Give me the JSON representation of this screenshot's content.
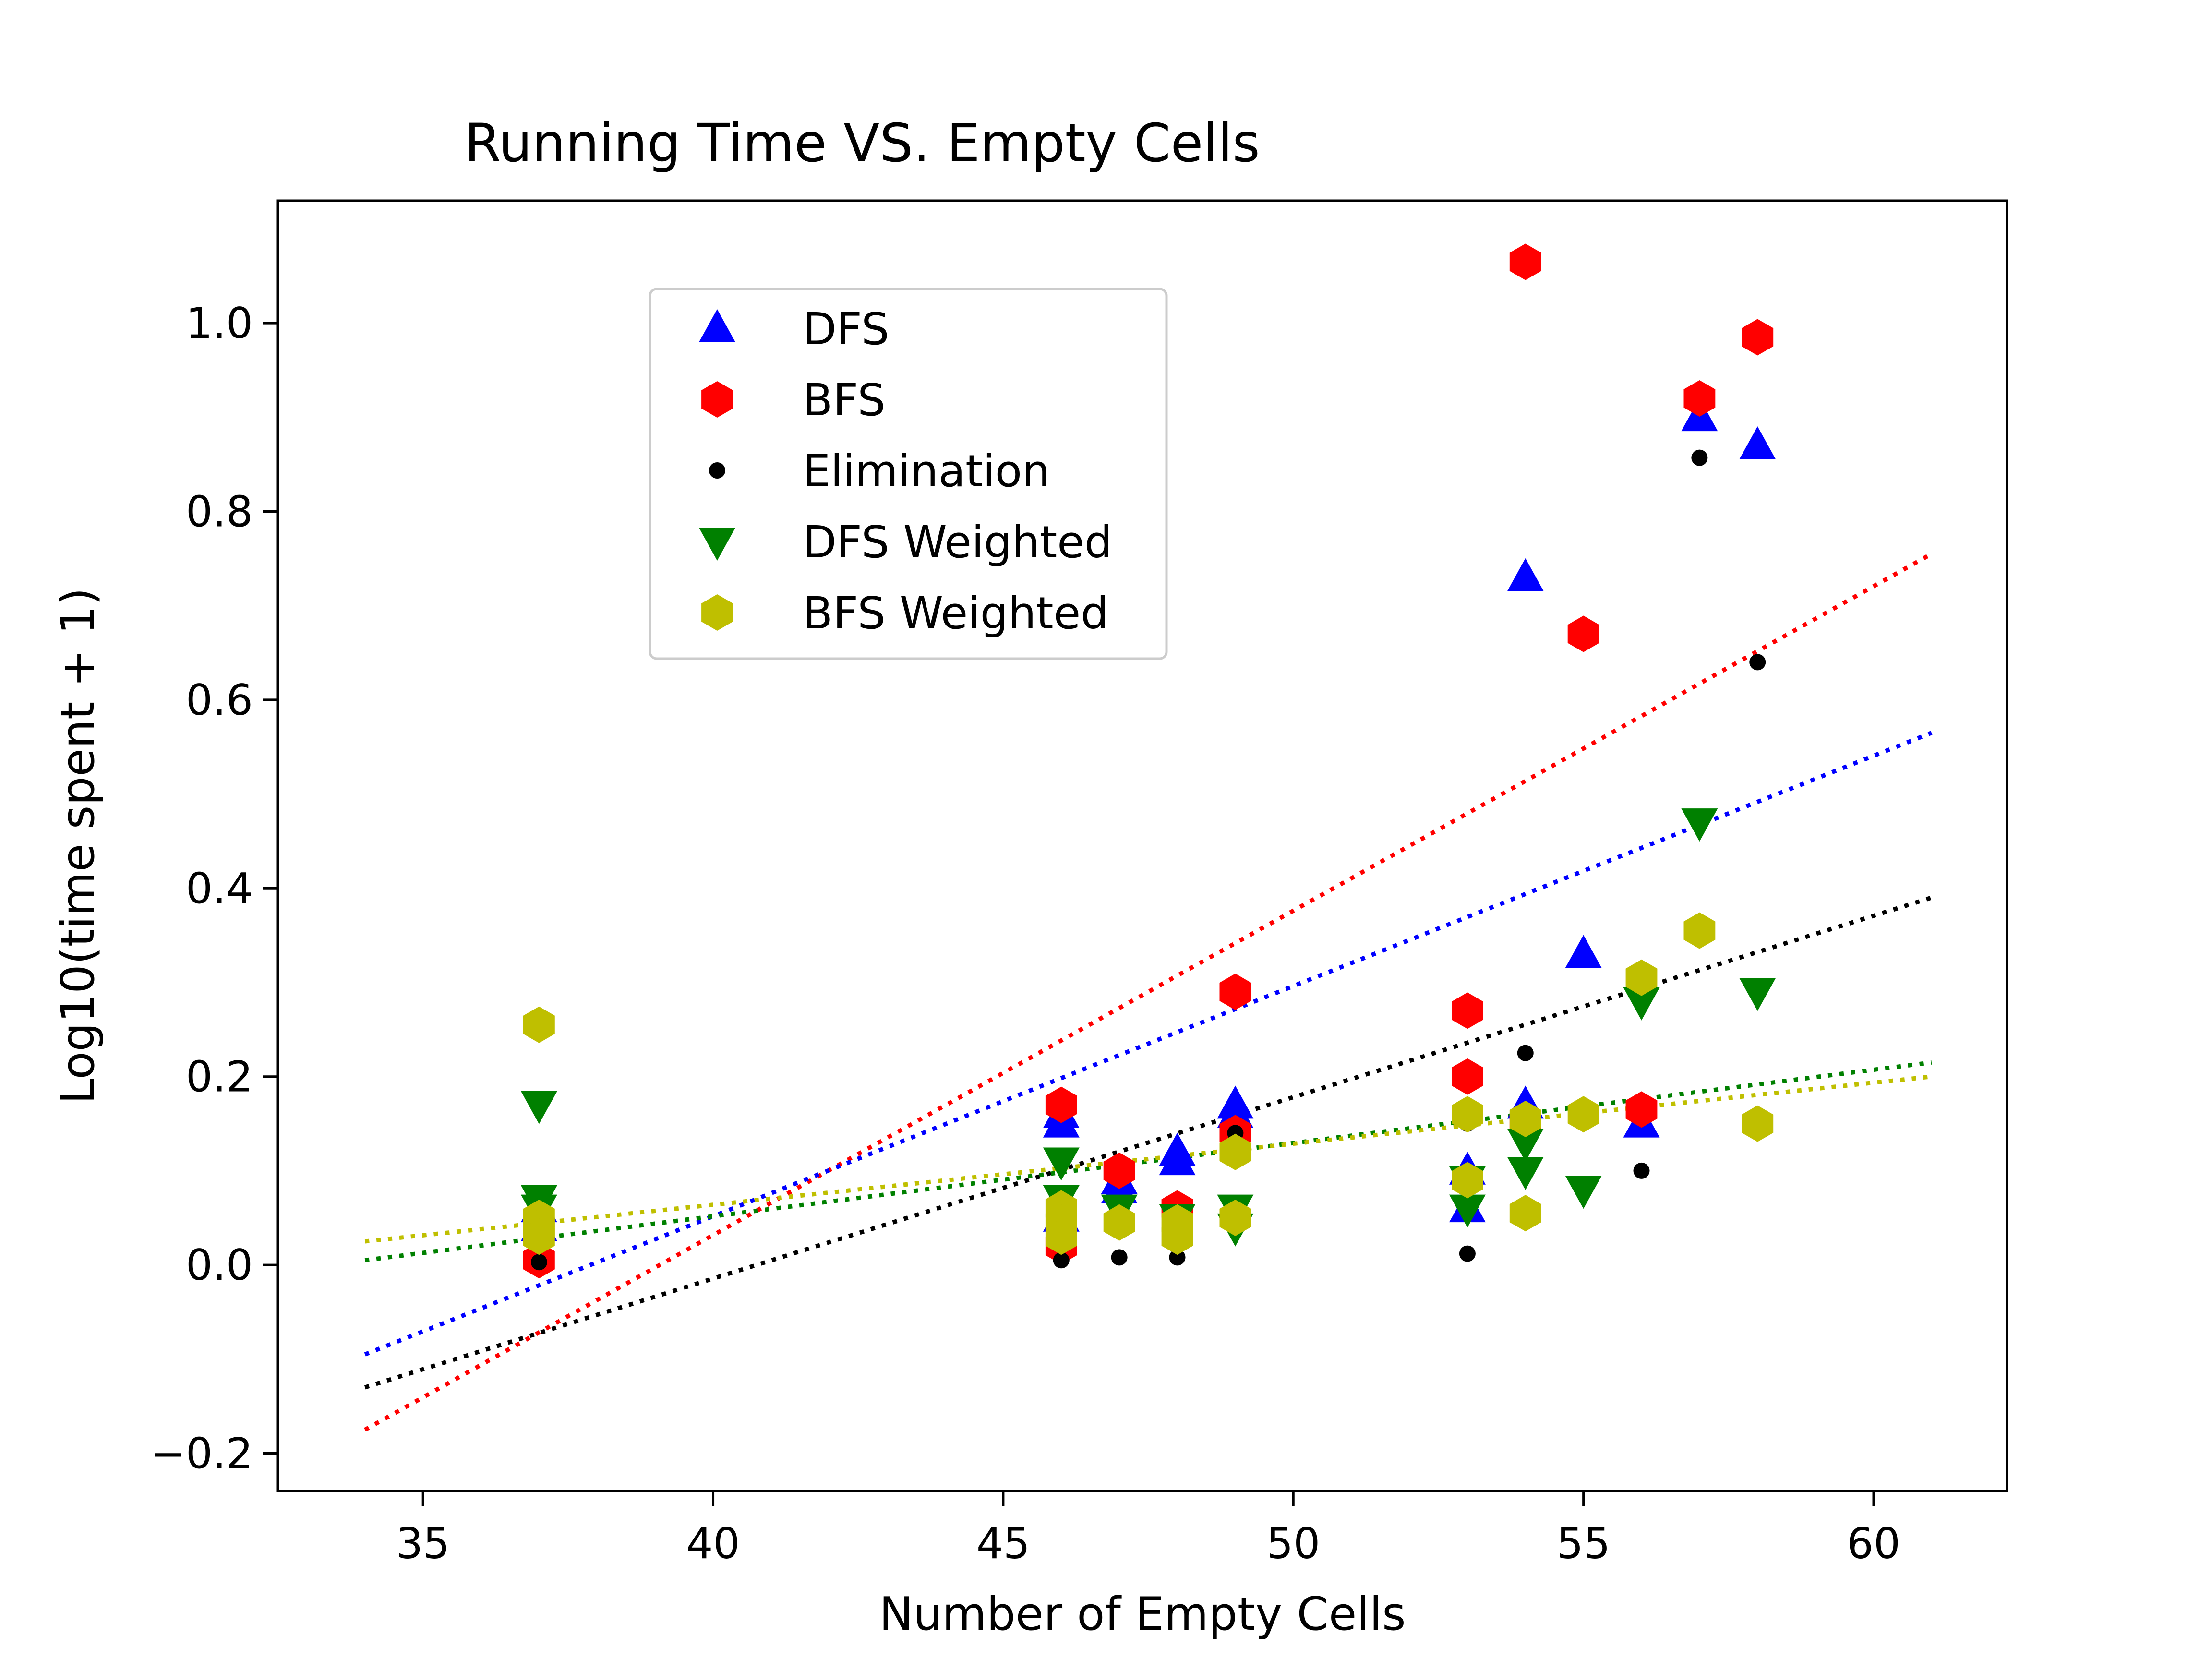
{
  "chart_data": {
    "type": "scatter",
    "title": "Running Time VS. Empty Cells",
    "xlabel": "Number of Empty Cells",
    "ylabel": "Log10(time spent + 1)",
    "xlim": [
      32.5,
      62.3
    ],
    "ylim": [
      -0.24,
      1.13
    ],
    "x_ticks": [
      35,
      40,
      45,
      50,
      55,
      60
    ],
    "x_tick_labels": [
      "35",
      "40",
      "45",
      "50",
      "55",
      "60"
    ],
    "y_ticks": [
      -0.2,
      0.0,
      0.2,
      0.4,
      0.6,
      0.8,
      1.0
    ],
    "y_tick_labels": [
      "−0.2",
      "0.0",
      "0.2",
      "0.4",
      "0.6",
      "0.8",
      "1.0"
    ],
    "grid": false,
    "legend_position": "upper-left-center",
    "series": [
      {
        "name": "DFS",
        "color": "#0000ff",
        "marker": "triangle-up",
        "points": [
          [
            37,
            0.06
          ],
          [
            37,
            0.04
          ],
          [
            46,
            0.16
          ],
          [
            46,
            0.15
          ],
          [
            46,
            0.05
          ],
          [
            47,
            0.09
          ],
          [
            47,
            0.08
          ],
          [
            48,
            0.11
          ],
          [
            48,
            0.12
          ],
          [
            49,
            0.17
          ],
          [
            49,
            0.16
          ],
          [
            53,
            0.1
          ],
          [
            53,
            0.06
          ],
          [
            54,
            0.73
          ],
          [
            54,
            0.17
          ],
          [
            55,
            0.33
          ],
          [
            56,
            0.15
          ],
          [
            57,
            0.9
          ],
          [
            58,
            0.87
          ]
        ]
      },
      {
        "name": "BFS",
        "color": "#ff0000",
        "marker": "hexagon",
        "points": [
          [
            37,
            0.005
          ],
          [
            46,
            0.17
          ],
          [
            46,
            0.02
          ],
          [
            47,
            0.1
          ],
          [
            48,
            0.06
          ],
          [
            49,
            0.29
          ],
          [
            49,
            0.14
          ],
          [
            53,
            0.27
          ],
          [
            53,
            0.2
          ],
          [
            54,
            1.065
          ],
          [
            54,
            0.15
          ],
          [
            55,
            0.67
          ],
          [
            56,
            0.165
          ],
          [
            57,
            0.92
          ],
          [
            58,
            0.985
          ]
        ]
      },
      {
        "name": "Elimination",
        "color": "#000000",
        "marker": "dot",
        "points": [
          [
            37,
            0.003
          ],
          [
            46,
            0.005
          ],
          [
            47,
            0.008
          ],
          [
            48,
            0.008
          ],
          [
            49,
            0.14
          ],
          [
            53,
            0.012
          ],
          [
            53,
            0.15
          ],
          [
            54,
            0.225
          ],
          [
            56,
            0.1
          ],
          [
            57,
            0.857
          ],
          [
            58,
            0.64
          ]
        ]
      },
      {
        "name": "DFS Weighted",
        "color": "#008000",
        "marker": "triangle-down",
        "points": [
          [
            37,
            0.17
          ],
          [
            37,
            0.07
          ],
          [
            37,
            0.06
          ],
          [
            46,
            0.11
          ],
          [
            46,
            0.07
          ],
          [
            47,
            0.06
          ],
          [
            48,
            0.05
          ],
          [
            49,
            0.06
          ],
          [
            49,
            0.04
          ],
          [
            53,
            0.09
          ],
          [
            53,
            0.06
          ],
          [
            54,
            0.13
          ],
          [
            54,
            0.1
          ],
          [
            55,
            0.08
          ],
          [
            56,
            0.28
          ],
          [
            57,
            0.47
          ],
          [
            58,
            0.29
          ]
        ]
      },
      {
        "name": "BFS Weighted",
        "color": "#bfbf00",
        "marker": "hexagon",
        "points": [
          [
            37,
            0.255
          ],
          [
            37,
            0.05
          ],
          [
            37,
            0.04
          ],
          [
            37,
            0.03
          ],
          [
            46,
            0.06
          ],
          [
            46,
            0.045
          ],
          [
            46,
            0.03
          ],
          [
            47,
            0.045
          ],
          [
            48,
            0.03
          ],
          [
            48,
            0.045
          ],
          [
            49,
            0.12
          ],
          [
            49,
            0.05
          ],
          [
            53,
            0.16
          ],
          [
            53,
            0.09
          ],
          [
            54,
            0.155
          ],
          [
            54,
            0.055
          ],
          [
            55,
            0.16
          ],
          [
            56,
            0.305
          ],
          [
            57,
            0.355
          ],
          [
            58,
            0.15
          ]
        ]
      }
    ],
    "trendlines": [
      {
        "color": "#ff0000",
        "x": [
          34,
          61
        ],
        "y": [
          -0.175,
          0.755
        ]
      },
      {
        "color": "#0000ff",
        "x": [
          34,
          61
        ],
        "y": [
          -0.095,
          0.565
        ]
      },
      {
        "color": "#000000",
        "x": [
          34,
          61
        ],
        "y": [
          -0.13,
          0.39
        ]
      },
      {
        "color": "#008000",
        "x": [
          34,
          61
        ],
        "y": [
          0.005,
          0.215
        ]
      },
      {
        "color": "#bfbf00",
        "x": [
          34,
          61
        ],
        "y": [
          0.025,
          0.2
        ]
      }
    ]
  }
}
